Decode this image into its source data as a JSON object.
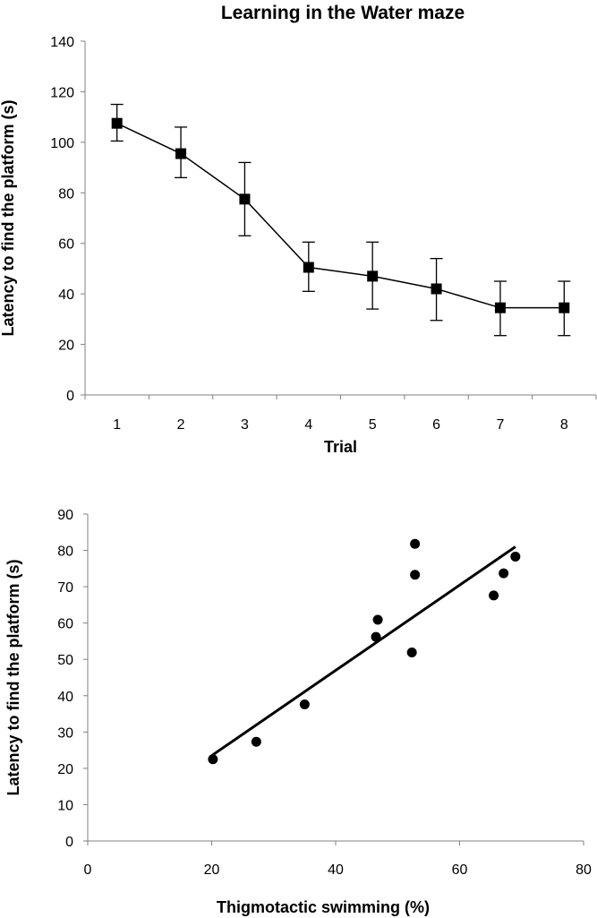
{
  "chart_data": [
    {
      "type": "line",
      "title": "Learning in the Water maze",
      "xlabel": "Trial",
      "ylabel": "Latency to find the platform (s)",
      "categories": [
        "1",
        "2",
        "3",
        "4",
        "5",
        "6",
        "7",
        "8"
      ],
      "series": [
        {
          "values": [
            107.5,
            95.5,
            77.5,
            50.5,
            47,
            42,
            34.5,
            34.5
          ],
          "error_upper": [
            115,
            106,
            92,
            60.5,
            60.5,
            54,
            45,
            45
          ],
          "error_lower": [
            100.5,
            86,
            63,
            41,
            34,
            29.5,
            23.5,
            23.5
          ],
          "marker": "square",
          "color": "#000000"
        }
      ],
      "ylim": [
        0,
        140
      ],
      "yticks": [
        0,
        20,
        40,
        60,
        80,
        100,
        120,
        140
      ],
      "grid": false,
      "legend": "none"
    },
    {
      "type": "scatter",
      "title": "",
      "xlabel": "Thigmotactic swimming (%)",
      "ylabel": "Latency to find the platform (s)",
      "points": [
        {
          "x": 20.2,
          "y": 22.5
        },
        {
          "x": 27.2,
          "y": 27.3
        },
        {
          "x": 35.0,
          "y": 37.6
        },
        {
          "x": 46.5,
          "y": 56.2
        },
        {
          "x": 46.8,
          "y": 60.9
        },
        {
          "x": 52.3,
          "y": 51.9
        },
        {
          "x": 52.8,
          "y": 73.3
        },
        {
          "x": 52.8,
          "y": 81.8
        },
        {
          "x": 65.5,
          "y": 67.6
        },
        {
          "x": 67.1,
          "y": 73.7
        },
        {
          "x": 69.0,
          "y": 78.3
        }
      ],
      "trendline": {
        "x": [
          20,
          69
        ],
        "y": [
          23.5,
          81
        ]
      },
      "xlim": [
        0,
        80
      ],
      "xticks": [
        0,
        20,
        40,
        60,
        80
      ],
      "ylim": [
        0,
        90
      ],
      "yticks": [
        0,
        10,
        20,
        30,
        40,
        50,
        60,
        70,
        80,
        90
      ],
      "grid": false,
      "legend": "none",
      "color": "#000000"
    }
  ]
}
